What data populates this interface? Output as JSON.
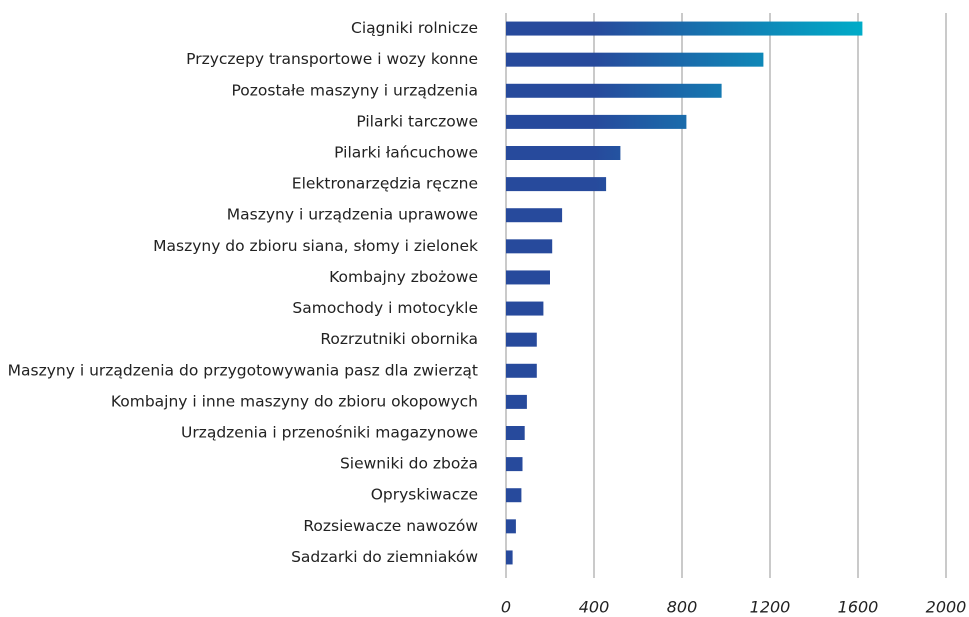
{
  "chart_data": {
    "type": "barh",
    "categories": [
      "Ciągniki rolnicze",
      "Przyczepy transportowe i wozy konne",
      "Pozostałe maszyny i urządzenia",
      "Pilarki tarczowe",
      "Pilarki łańcuchowe",
      "Elektronarzędzia ręczne",
      "Maszyny i urządzenia uprawowe",
      "Maszyny do zbioru siana, słomy i zielonek",
      "Kombajny zbożowe",
      "Samochody i motocykle",
      "Rozrzutniki obornika",
      "Maszyny i urządzenia do przygotowywania pasz dla zwierząt",
      "Kombajny i inne maszyny do zbioru okopowych",
      "Urządzenia i przenośniki magazynowe",
      "Siewniki do zboża",
      "Opryskiwacze",
      "Rozsiewacze nawozów",
      "Sadzarki do ziemniaków"
    ],
    "values": [
      1620,
      1170,
      980,
      820,
      520,
      455,
      255,
      210,
      200,
      170,
      140,
      140,
      95,
      85,
      75,
      70,
      45,
      30
    ],
    "color_start": "#274a9c",
    "color_end": "#00acc8",
    "xlim": [
      0,
      2000
    ],
    "xticks": [
      0,
      400,
      800,
      1200,
      1600,
      2000
    ],
    "grid": true
  }
}
